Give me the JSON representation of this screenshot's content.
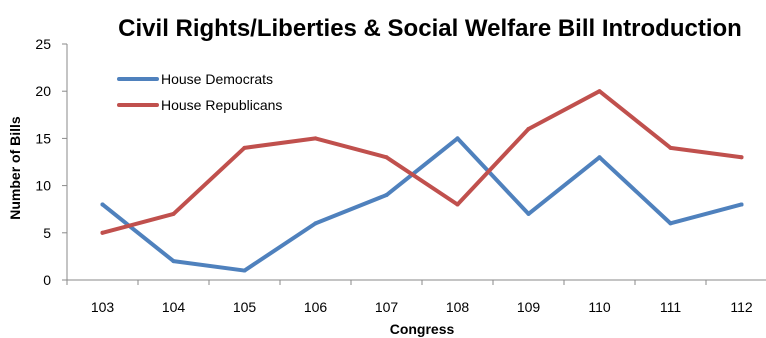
{
  "chart_data": {
    "type": "line",
    "title": "Civil Rights/Liberties & Social Welfare Bill Introduction",
    "xlabel": "Congress",
    "ylabel": "Number of Bills",
    "categories": [
      "103",
      "104",
      "105",
      "106",
      "107",
      "108",
      "109",
      "110",
      "111",
      "112"
    ],
    "ylim": [
      0,
      25
    ],
    "yticks": [
      0,
      5,
      10,
      15,
      20,
      25
    ],
    "grid": false,
    "legend_position": "top-left",
    "series": [
      {
        "name": "House Democrats",
        "color": "#4F81BD",
        "values": [
          8,
          2,
          1,
          6,
          9,
          15,
          7,
          13,
          6,
          8
        ]
      },
      {
        "name": "House Republicans",
        "color": "#C0504D",
        "values": [
          5,
          7,
          14,
          15,
          13,
          8,
          16,
          20,
          14,
          13
        ]
      }
    ]
  }
}
